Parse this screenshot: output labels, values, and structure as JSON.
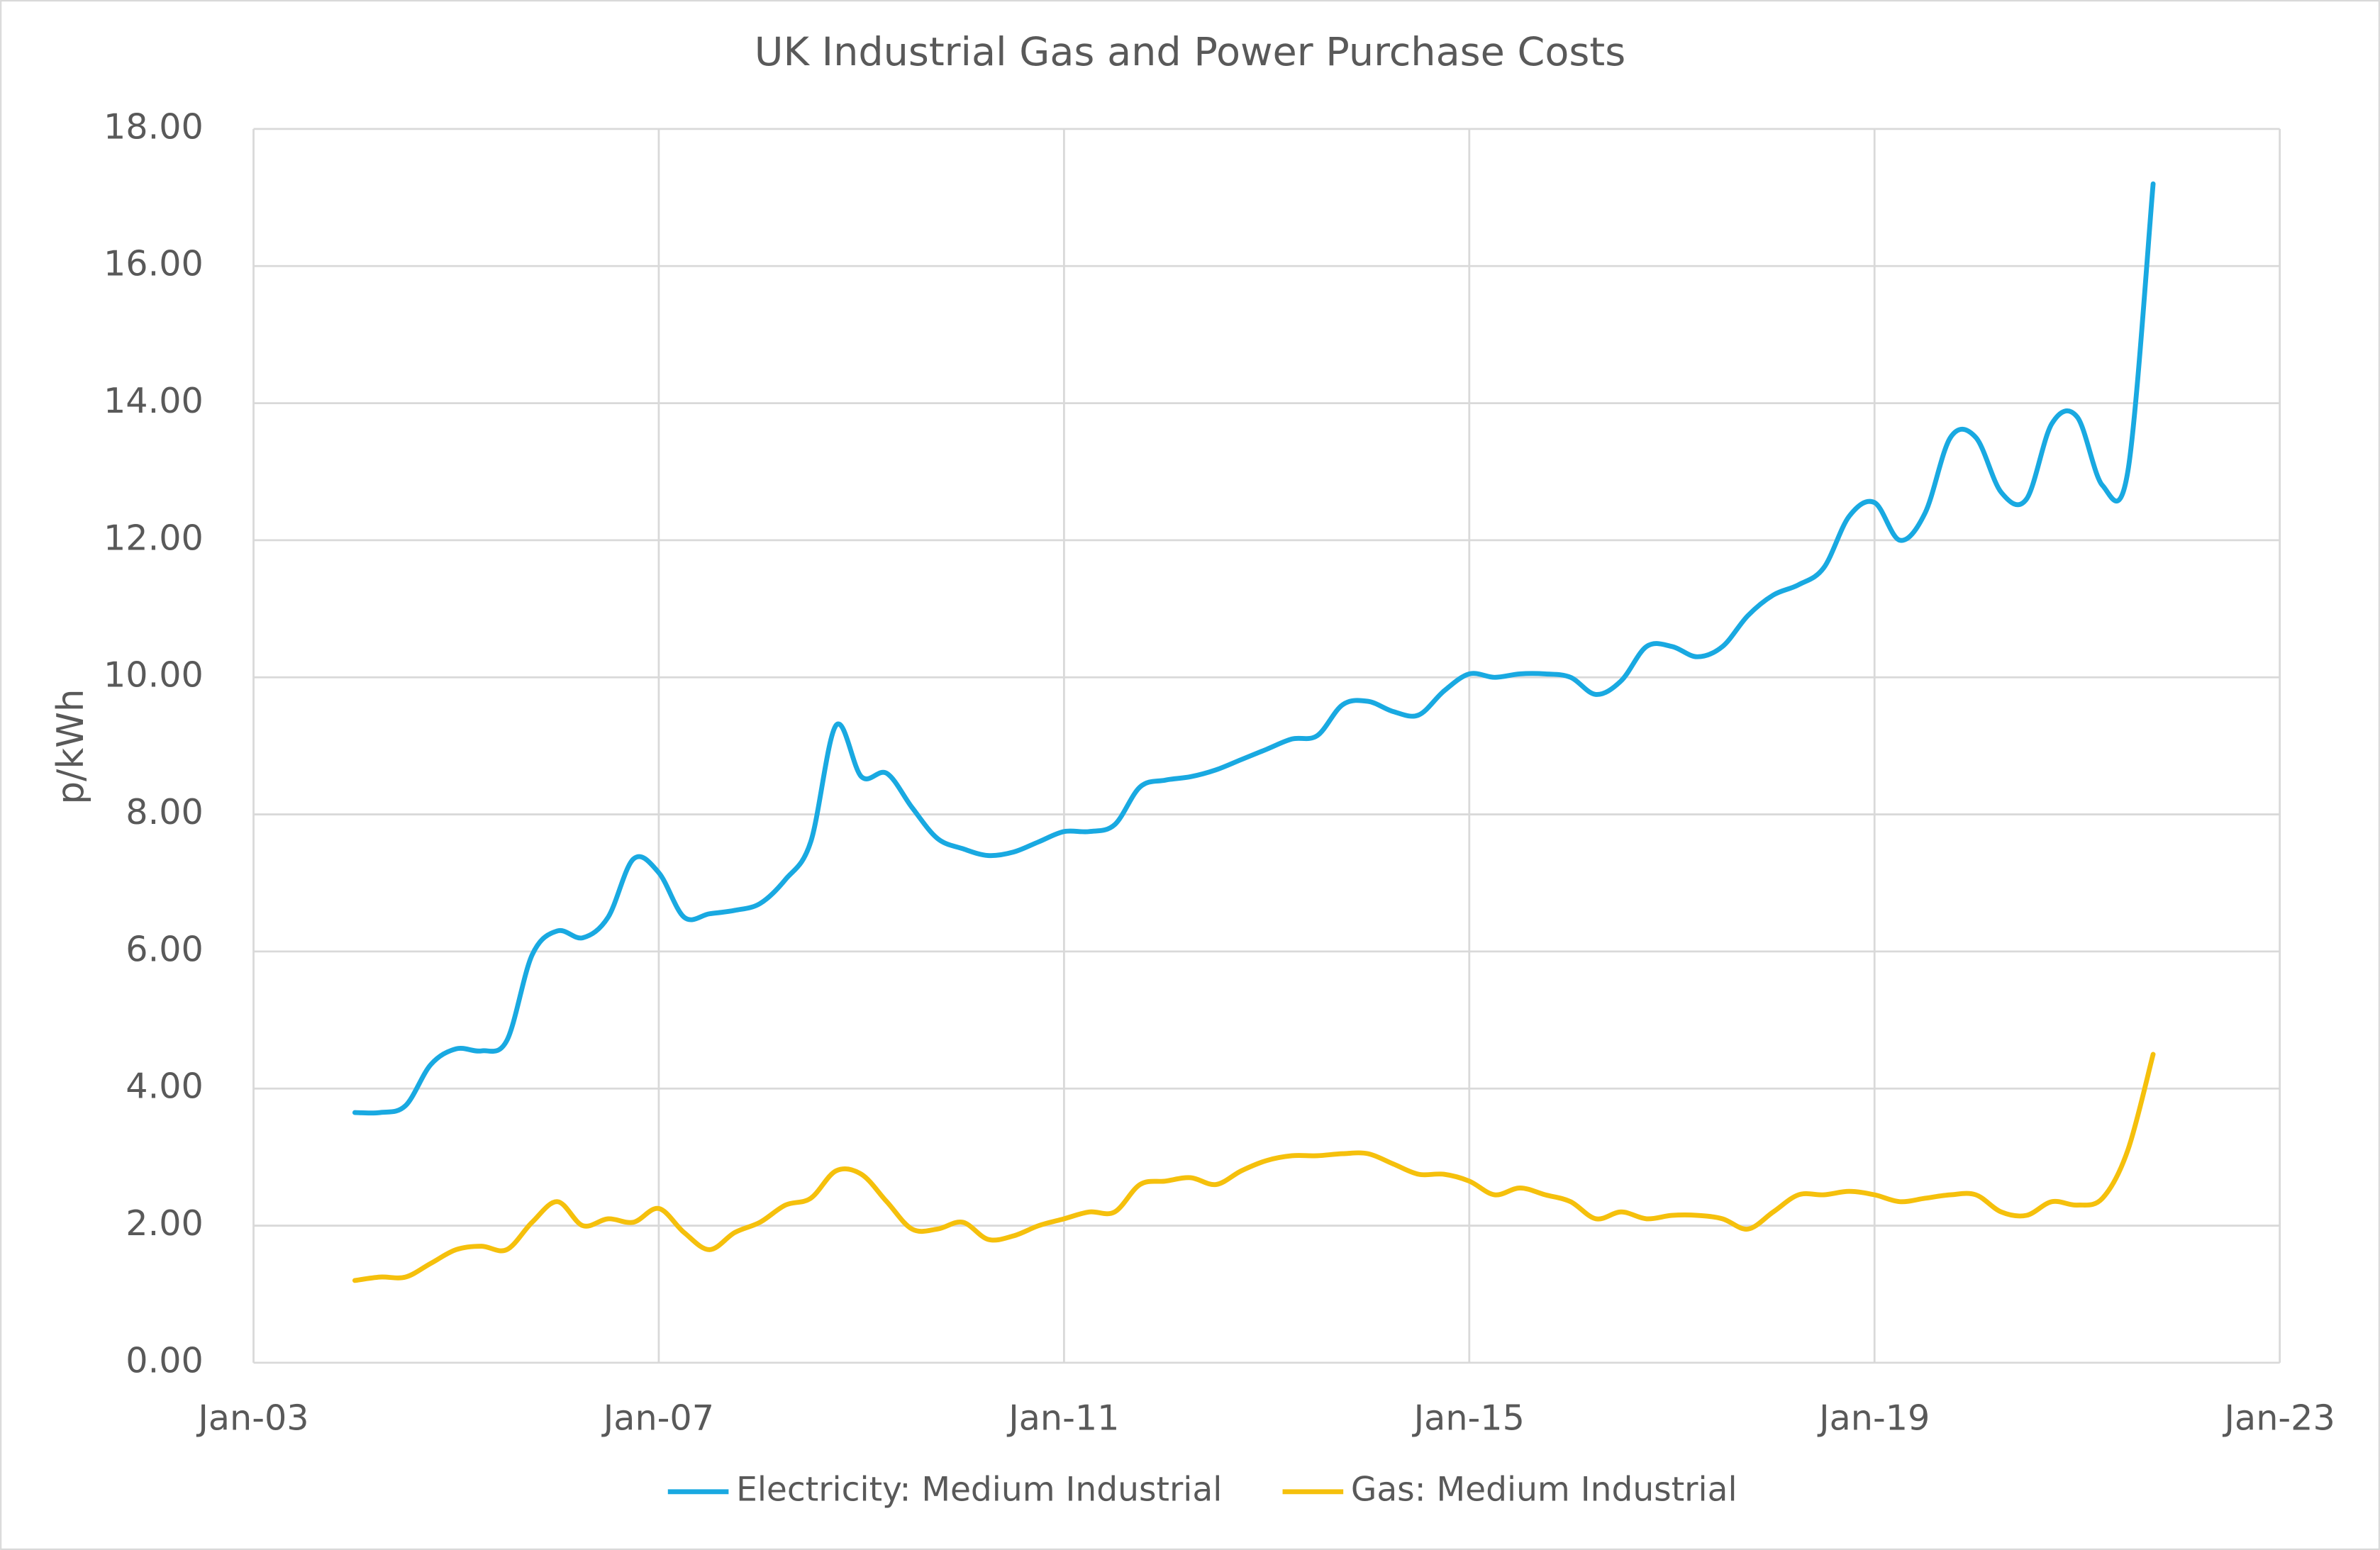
{
  "chart_data": {
    "type": "line",
    "title": "UK Industrial Gas and Power Purchase Costs",
    "y_label": "p/kWh",
    "x": [
      "2004-01",
      "2004-04",
      "2004-07",
      "2004-10",
      "2005-01",
      "2005-04",
      "2005-07",
      "2005-10",
      "2006-01",
      "2006-04",
      "2006-07",
      "2006-10",
      "2007-01",
      "2007-04",
      "2007-07",
      "2007-10",
      "2008-01",
      "2008-04",
      "2008-07",
      "2008-10",
      "2009-01",
      "2009-04",
      "2009-07",
      "2009-10",
      "2010-01",
      "2010-04",
      "2010-07",
      "2010-10",
      "2011-01",
      "2011-04",
      "2011-07",
      "2011-10",
      "2012-01",
      "2012-04",
      "2012-07",
      "2012-10",
      "2013-01",
      "2013-04",
      "2013-07",
      "2013-10",
      "2014-01",
      "2014-04",
      "2014-07",
      "2014-10",
      "2015-01",
      "2015-04",
      "2015-07",
      "2015-10",
      "2016-01",
      "2016-04",
      "2016-07",
      "2016-10",
      "2017-01",
      "2017-04",
      "2017-07",
      "2017-10",
      "2018-01",
      "2018-04",
      "2018-07",
      "2018-10",
      "2019-01",
      "2019-04",
      "2019-07",
      "2019-10",
      "2020-01",
      "2020-04",
      "2020-07",
      "2020-10",
      "2021-01",
      "2021-04",
      "2021-07",
      "2021-10"
    ],
    "series": [
      {
        "name": "Electricity: Medium Industrial",
        "color": "#19a9e1",
        "values": [
          3.65,
          3.65,
          3.75,
          4.35,
          4.58,
          4.55,
          4.7,
          5.95,
          6.3,
          6.2,
          6.5,
          7.35,
          7.15,
          6.5,
          6.55,
          6.6,
          6.7,
          7.05,
          7.6,
          9.3,
          8.55,
          8.6,
          8.1,
          7.65,
          7.5,
          7.4,
          7.45,
          7.6,
          7.75,
          7.75,
          7.85,
          8.4,
          8.5,
          8.55,
          8.65,
          8.8,
          8.95,
          9.1,
          9.15,
          9.6,
          9.65,
          9.5,
          9.45,
          9.8,
          10.05,
          10.0,
          10.05,
          10.05,
          10.0,
          9.75,
          9.95,
          10.45,
          10.45,
          10.3,
          10.45,
          10.9,
          11.2,
          11.35,
          11.6,
          12.35,
          12.55,
          12.0,
          12.4,
          13.5,
          13.5,
          12.7,
          12.6,
          13.7,
          13.8,
          12.8,
          13.0,
          17.2
        ]
      },
      {
        "name": "Gas: Medium Industrial",
        "color": "#f5c00c",
        "values": [
          1.2,
          1.25,
          1.25,
          1.45,
          1.65,
          1.7,
          1.65,
          2.05,
          2.35,
          2.0,
          2.1,
          2.05,
          2.25,
          1.9,
          1.65,
          1.9,
          2.05,
          2.3,
          2.4,
          2.8,
          2.75,
          2.35,
          1.95,
          1.95,
          2.05,
          1.8,
          1.85,
          2.0,
          2.1,
          2.2,
          2.2,
          2.6,
          2.65,
          2.7,
          2.6,
          2.8,
          2.95,
          3.02,
          3.02,
          3.05,
          3.05,
          2.9,
          2.75,
          2.75,
          2.65,
          2.45,
          2.55,
          2.45,
          2.35,
          2.1,
          2.2,
          2.1,
          2.15,
          2.15,
          2.1,
          1.95,
          2.2,
          2.45,
          2.45,
          2.5,
          2.45,
          2.35,
          2.4,
          2.45,
          2.45,
          2.2,
          2.15,
          2.35,
          2.3,
          2.4,
          3.1,
          4.5
        ]
      }
    ],
    "xlim": [
      "2003-01",
      "2023-01"
    ],
    "xticks": [
      {
        "value": "2003-01",
        "label": "Jan-03"
      },
      {
        "value": "2007-01",
        "label": "Jan-07"
      },
      {
        "value": "2011-01",
        "label": "Jan-11"
      },
      {
        "value": "2015-01",
        "label": "Jan-15"
      },
      {
        "value": "2019-01",
        "label": "Jan-19"
      },
      {
        "value": "2023-01",
        "label": "Jan-23"
      }
    ],
    "ylim": [
      0,
      18
    ],
    "yticks": [
      {
        "value": 0,
        "label": "0.00"
      },
      {
        "value": 2,
        "label": "2.00"
      },
      {
        "value": 4,
        "label": "4.00"
      },
      {
        "value": 6,
        "label": "6.00"
      },
      {
        "value": 8,
        "label": "8.00"
      },
      {
        "value": 10,
        "label": "10.00"
      },
      {
        "value": 12,
        "label": "12.00"
      },
      {
        "value": 14,
        "label": "14.00"
      },
      {
        "value": 16,
        "label": "16.00"
      },
      {
        "value": 18,
        "label": "18.00"
      }
    ],
    "grid": true,
    "legend": "bottom"
  }
}
